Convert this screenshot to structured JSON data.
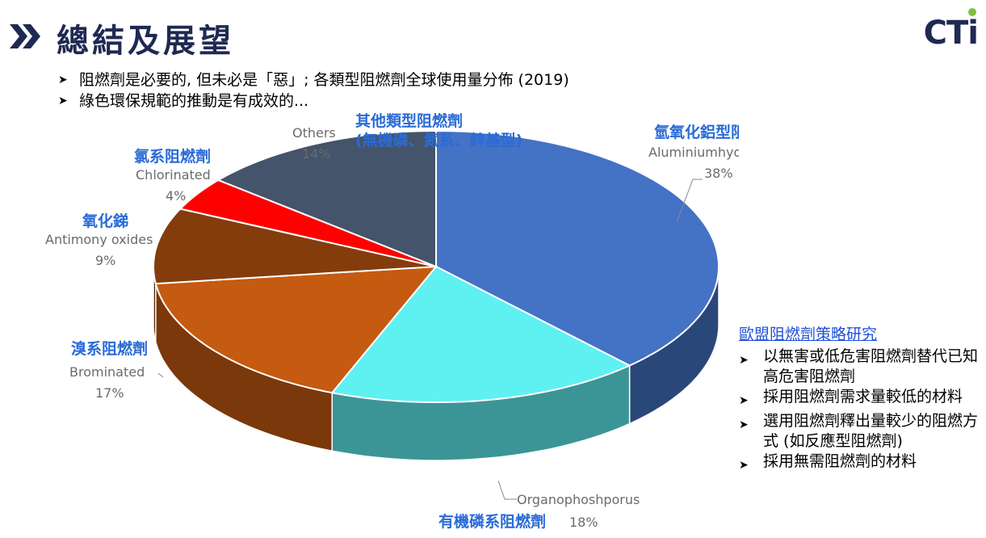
{
  "header": {
    "title": "總結及展望",
    "logo": "CTi"
  },
  "bullets": [
    "阻燃劑是必要的, 但未必是「惡」; 各類型阻燃劑全球使用量分佈 (2019)",
    "綠色環保規範的推動是有成效的..."
  ],
  "chart_data": {
    "type": "pie",
    "title": "",
    "slices": [
      {
        "label_zh": "氫氧化鋁型阻燃劑",
        "label_en": "Aluminiumhydroxide",
        "value": 38,
        "pct_label": "38%",
        "color": "#4472c4"
      },
      {
        "label_zh": "有機磷系阻燃劑",
        "label_en": "Organophoshporus",
        "value": 18,
        "pct_label": "18%",
        "color": "#5ff0f2"
      },
      {
        "label_zh": "溴系阻燃劑",
        "label_en": "Brominated",
        "value": 17,
        "pct_label": "17%",
        "color": "#c55a11"
      },
      {
        "label_zh": "氧化銻",
        "label_en": "Antimony oxides",
        "value": 9,
        "pct_label": "9%",
        "color": "#843c0c"
      },
      {
        "label_zh": "氯系阻燃劑",
        "label_en": "Chlorinated",
        "value": 4,
        "pct_label": "4%",
        "color": "#ff0000"
      },
      {
        "label_zh": "其他類型阻燃劑\n(無機磷、氮系、鋅基型)",
        "label_zh_line1": "其他類型阻燃劑",
        "label_zh_line2": "(無機磷、氮系、鋅基型)",
        "label_en": "Others",
        "value": 14,
        "pct_label": "14%",
        "color": "#44546a"
      }
    ]
  },
  "side_panel": {
    "title": "歐盟阻燃劑策略研究",
    "items": [
      "以無害或低危害阻燃劑替代已知高危害阻燃劑",
      "採用阻燃劑需求量較低的材料",
      "選用阻燃劑釋出量較少的阻燃方式 (如反應型阻燃劑)",
      "採用無需阻燃劑的材料"
    ]
  }
}
